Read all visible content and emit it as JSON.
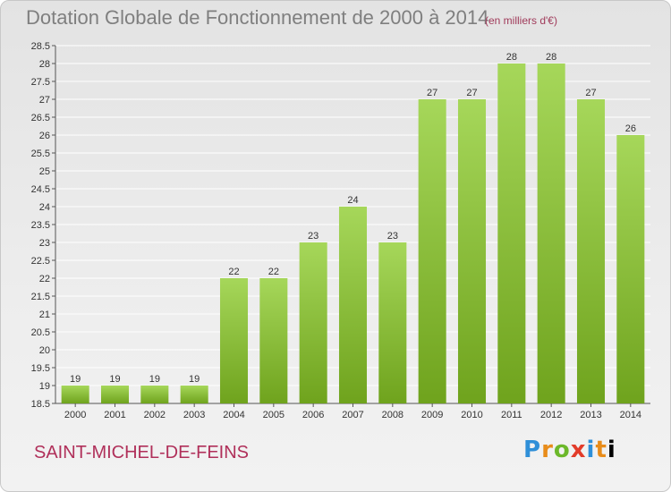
{
  "header": {
    "title": "Dotation Globale de Fonctionnement de 2000 à 2014",
    "subtitle": "(en milliers d'€)"
  },
  "footer": {
    "commune": "SAINT-MICHEL-DE-FEINS",
    "logo_letters": [
      "P",
      "r",
      "o",
      "x",
      "i",
      "t",
      "i"
    ]
  },
  "colors": {
    "bar_light": "#a6d75a",
    "bar_dark": "#6fa31d",
    "grid": "#ffffff"
  },
  "chart_data": {
    "type": "bar",
    "title": "Dotation Globale de Fonctionnement de 2000 à 2014",
    "subtitle": "(en milliers d'€)",
    "categories": [
      "2000",
      "2001",
      "2002",
      "2003",
      "2004",
      "2005",
      "2006",
      "2007",
      "2008",
      "2009",
      "2010",
      "2011",
      "2012",
      "2013",
      "2014"
    ],
    "values": [
      19,
      19,
      19,
      19,
      22,
      22,
      23,
      24,
      23,
      27,
      27,
      28,
      28,
      27,
      26
    ],
    "value_labels": [
      "19",
      "19",
      "19",
      "19",
      "22",
      "22",
      "23",
      "24",
      "23",
      "27",
      "27",
      "28",
      "28",
      "27",
      "26"
    ],
    "ylim": [
      18.5,
      28.5
    ],
    "yticks": [
      18.5,
      19,
      19.5,
      20,
      20.5,
      21,
      21.5,
      22,
      22.5,
      23,
      23.5,
      24,
      24.5,
      25,
      25.5,
      26,
      26.5,
      27,
      27.5,
      28,
      28.5
    ],
    "ytick_labels": [
      "18.5",
      "19",
      "19.5",
      "20",
      "20.5",
      "21",
      "21.5",
      "22",
      "22.5",
      "23",
      "23.5",
      "24",
      "24.5",
      "25",
      "25.5",
      "26",
      "26.5",
      "27",
      "27.5",
      "28",
      "28.5"
    ],
    "grid": true,
    "xlabel": "",
    "ylabel": ""
  }
}
